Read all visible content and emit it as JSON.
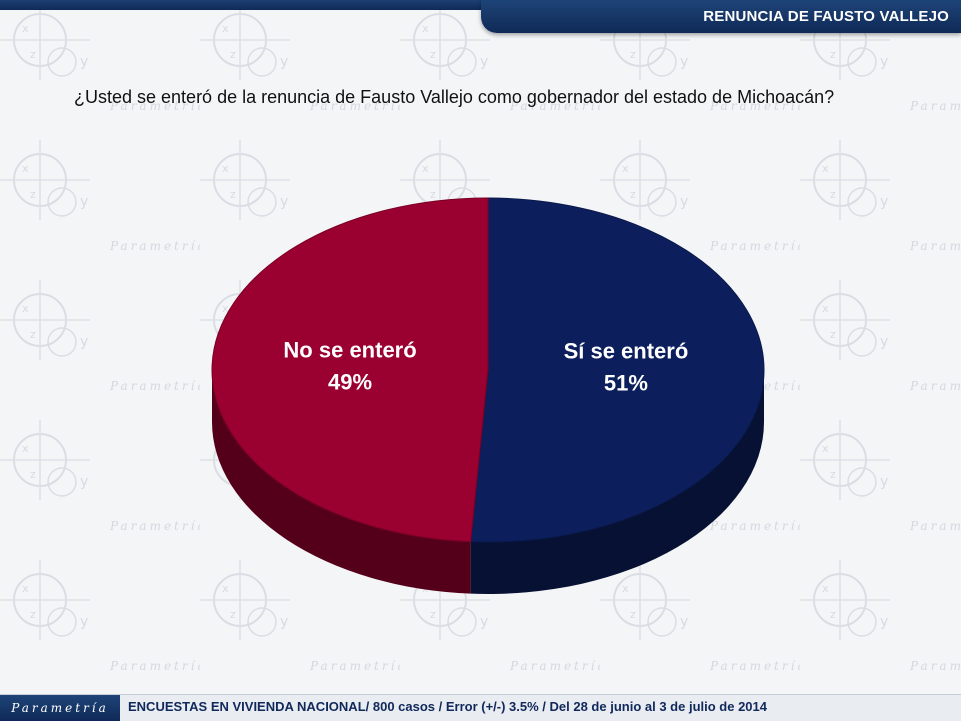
{
  "header": {
    "title": "RENUNCIA DE FAUSTO VALLEJO"
  },
  "question": "¿Usted se enteró de la renuncia de Fausto Vallejo como gobernador del estado de Michoacán?",
  "chart_data": {
    "type": "pie",
    "categories": [
      "No se enteró",
      "Sí se enteró"
    ],
    "values": [
      49,
      51
    ],
    "value_labels": [
      "49%",
      "51%"
    ],
    "colors": [
      "#9a0030",
      "#0c1f5c"
    ],
    "title": "",
    "legend": "none",
    "style": "3d"
  },
  "footer": {
    "logo": "Parametría",
    "text": "ENCUESTAS EN VIVIENDA NACIONAL/ 800 casos / Error (+/-) 3.5% / Del 28 de junio al 3 de julio de 2014"
  },
  "background": {
    "watermark": "Parametría"
  }
}
